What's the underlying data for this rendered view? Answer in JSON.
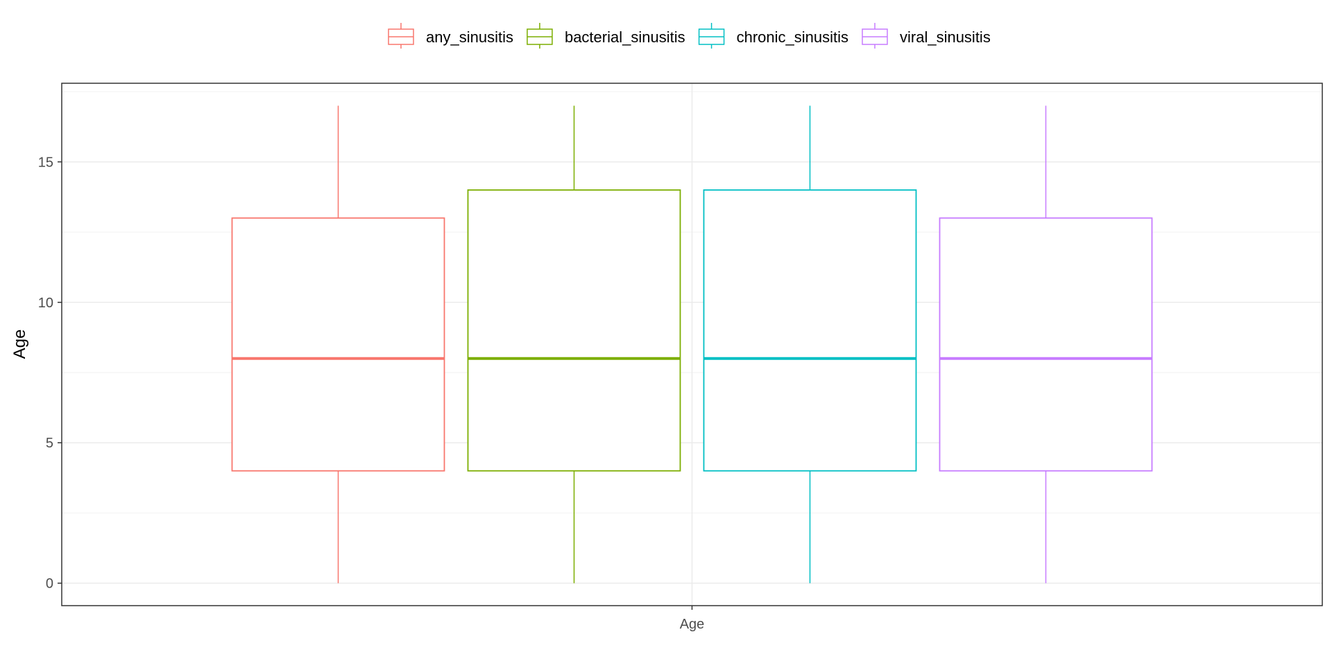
{
  "chart_data": {
    "type": "boxplot",
    "categories": [
      "Age"
    ],
    "xlabel": "Age",
    "ylabel": "Age",
    "ylim": [
      -0.8,
      17.8
    ],
    "yticks": [
      0,
      5,
      10,
      15
    ],
    "grid": true,
    "legend_position": "top",
    "series": [
      {
        "name": "any_sinusitis",
        "color": "#F8766D",
        "min": 0,
        "q1": 4,
        "median": 8,
        "q3": 13,
        "max": 17
      },
      {
        "name": "bacterial_sinusitis",
        "color": "#7CAE00",
        "min": 0,
        "q1": 4,
        "median": 8,
        "q3": 14,
        "max": 17
      },
      {
        "name": "chronic_sinusitis",
        "color": "#00BFC4",
        "min": 0,
        "q1": 4,
        "median": 8,
        "q3": 14,
        "max": 17
      },
      {
        "name": "viral_sinusitis",
        "color": "#C77CFF",
        "min": 0,
        "q1": 4,
        "median": 8,
        "q3": 13,
        "max": 17
      }
    ]
  }
}
